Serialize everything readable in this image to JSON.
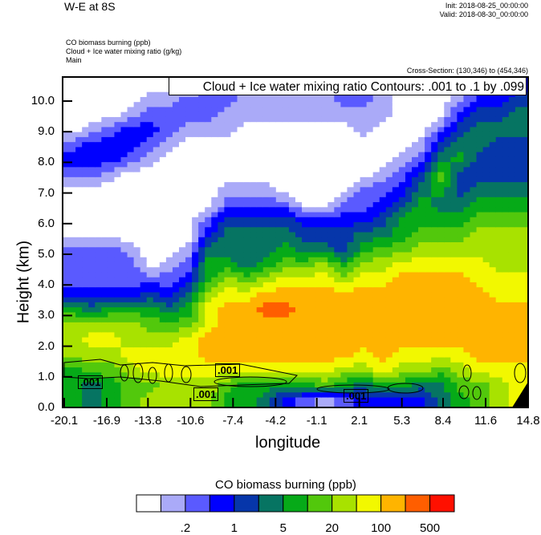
{
  "header": {
    "title": "W-E at 8S",
    "init": "Init: 2018-08-25_00:00:00",
    "valid": "Valid: 2018-08-30_00:00:00",
    "field1": "CO biomass burning   (ppb)",
    "field2": "Cloud + Ice water mixing ratio    (g/kg)",
    "field3": "Main",
    "cross_section": "Cross-Section: (130,346) to (454,346)",
    "contour_legend": "Cloud + Ice water mixing ratio Contours: .001 to .1 by .099"
  },
  "chart_data": {
    "type": "heatmap",
    "title": "W-E at 8S",
    "xlabel": "longitude",
    "ylabel": "Height (km)",
    "xlim": [
      -20.1,
      14.8
    ],
    "ylim": [
      0.0,
      10.8
    ],
    "xticks": [
      "-20.1",
      "-16.9",
      "-13.8",
      "-10.6",
      "-7.4",
      "-4.2",
      "-1.1",
      "2.1",
      "5.3",
      "8.4",
      "11.6",
      "14.8"
    ],
    "yticks": [
      "0.0",
      "1.0",
      "2.0",
      "3.0",
      "4.0",
      "5.0",
      "6.0",
      "7.0",
      "8.0",
      "9.0",
      "10.0"
    ],
    "colorbar": {
      "title": "CO biomass burning  (ppb)",
      "colors": [
        "#ffffff",
        "#aaaaf8",
        "#5a5aff",
        "#0000ff",
        "#0636aa",
        "#067462",
        "#06aa18",
        "#52c80c",
        "#a8e200",
        "#f2f800",
        "#ffb400",
        "#ff5e00",
        "#ff1000"
      ],
      "labels": [
        ".2",
        "1",
        "5",
        "20",
        "100",
        "500"
      ],
      "label_boundaries": [
        2,
        4,
        6,
        8,
        10,
        12
      ]
    },
    "grid_note": "values are color level indices (0-12) per column, heights top to bottom",
    "heights_km": [
      10.5,
      10.0,
      9.5,
      9.0,
      8.5,
      8.0,
      7.5,
      7.0,
      6.5,
      6.0,
      5.5,
      5.0,
      4.5,
      4.0,
      3.5,
      3.0,
      2.5,
      2.0,
      1.5,
      1.0,
      0.5,
      0.1
    ],
    "columns": [
      [
        0,
        0,
        0,
        0,
        2,
        3,
        2,
        0,
        0,
        0,
        0,
        2,
        2,
        2,
        3,
        6,
        8,
        8,
        8,
        6,
        6,
        6
      ],
      [
        0,
        0,
        0,
        1,
        3,
        3,
        2,
        0,
        0,
        0,
        0,
        2,
        2,
        2,
        3,
        5,
        8,
        9,
        8,
        7,
        5,
        5
      ],
      [
        0,
        0,
        0,
        2,
        3,
        3,
        1,
        0,
        0,
        0,
        0,
        2,
        2,
        2,
        3,
        6,
        8,
        9,
        8,
        7,
        6,
        6
      ],
      [
        0,
        0,
        1,
        3,
        3,
        2,
        0,
        0,
        0,
        0,
        0,
        1,
        2,
        2,
        3,
        6,
        8,
        8,
        9,
        8,
        7,
        7
      ],
      [
        0,
        1,
        2,
        3,
        2,
        1,
        0,
        0,
        0,
        0,
        0,
        0,
        0,
        2,
        4,
        6,
        7,
        8,
        9,
        9,
        7,
        8
      ],
      [
        0,
        1,
        2,
        2,
        1,
        0,
        0,
        0,
        0,
        0,
        0,
        0,
        1,
        2,
        3,
        5,
        7,
        8,
        9,
        9,
        8,
        8
      ],
      [
        0,
        2,
        2,
        1,
        0,
        0,
        0,
        0,
        0,
        0,
        0,
        1,
        2,
        3,
        5,
        6,
        7,
        9,
        9,
        9,
        8,
        8
      ],
      [
        1,
        2,
        2,
        1,
        0,
        0,
        0,
        0,
        0,
        2,
        3,
        5,
        6,
        6,
        8,
        9,
        9,
        10,
        10,
        9,
        8,
        8
      ],
      [
        2,
        2,
        1,
        1,
        0,
        0,
        0,
        1,
        2,
        4,
        5,
        5,
        6,
        8,
        9,
        10,
        10,
        10,
        10,
        9,
        7,
        6
      ],
      [
        1,
        1,
        1,
        0,
        0,
        0,
        0,
        1,
        2,
        4,
        5,
        5,
        5,
        7,
        9,
        10,
        10,
        10,
        10,
        9,
        6,
        6
      ],
      [
        1,
        1,
        1,
        0,
        0,
        0,
        0,
        1,
        2,
        4,
        5,
        5,
        6,
        8,
        10,
        11,
        10,
        10,
        10,
        9,
        6,
        5
      ],
      [
        1,
        1,
        1,
        0,
        0,
        0,
        0,
        0,
        2,
        4,
        5,
        6,
        7,
        9,
        10,
        11,
        10,
        10,
        10,
        9,
        6,
        3
      ],
      [
        1,
        1,
        1,
        0,
        0,
        0,
        0,
        0,
        0,
        3,
        4,
        5,
        7,
        9,
        10,
        10,
        10,
        10,
        10,
        9,
        6,
        2
      ],
      [
        1,
        1,
        1,
        0,
        0,
        0,
        0,
        0,
        0,
        3,
        4,
        5,
        8,
        9,
        10,
        10,
        10,
        10,
        10,
        9,
        7,
        1
      ],
      [
        2,
        2,
        1,
        0,
        0,
        0,
        0,
        0,
        2,
        3,
        4,
        4,
        6,
        8,
        10,
        10,
        10,
        10,
        10,
        8,
        6,
        2
      ],
      [
        2,
        2,
        1,
        1,
        0,
        0,
        0,
        2,
        2,
        3,
        5,
        6,
        8,
        9,
        10,
        10,
        10,
        10,
        9,
        8,
        5,
        3
      ],
      [
        1,
        1,
        1,
        0,
        0,
        0,
        1,
        2,
        3,
        4,
        5,
        7,
        8,
        9,
        10,
        10,
        10,
        10,
        10,
        9,
        6,
        3
      ],
      [
        0,
        0,
        0,
        0,
        0,
        1,
        2,
        3,
        4,
        6,
        6,
        7,
        9,
        10,
        10,
        10,
        10,
        10,
        9,
        8,
        6,
        3
      ],
      [
        0,
        0,
        0,
        0,
        1,
        2,
        4,
        5,
        6,
        6,
        7,
        8,
        9,
        10,
        10,
        10,
        10,
        10,
        9,
        8,
        5,
        3
      ],
      [
        0,
        0,
        0,
        2,
        4,
        5,
        7,
        6,
        5,
        6,
        7,
        8,
        9,
        10,
        10,
        10,
        10,
        10,
        9,
        7,
        5,
        5
      ],
      [
        1,
        1,
        3,
        4,
        5,
        6,
        4,
        4,
        5,
        6,
        7,
        8,
        9,
        10,
        10,
        10,
        10,
        10,
        9,
        8,
        7,
        6
      ],
      [
        2,
        3,
        4,
        5,
        5,
        4,
        4,
        5,
        6,
        7,
        8,
        8,
        9,
        9,
        10,
        10,
        10,
        10,
        10,
        9,
        7,
        7
      ],
      [
        3,
        3,
        4,
        5,
        4,
        4,
        4,
        5,
        6,
        7,
        8,
        8,
        8,
        9,
        9,
        10,
        10,
        10,
        10,
        9,
        8,
        8
      ],
      [
        3,
        4,
        5,
        5,
        4,
        4,
        4,
        5,
        6,
        7,
        8,
        8,
        8,
        9,
        9,
        10,
        10,
        10,
        10,
        9,
        9,
        9
      ]
    ],
    "contour_labels": [
      ".001",
      ".001",
      ".001",
      ".001"
    ]
  }
}
